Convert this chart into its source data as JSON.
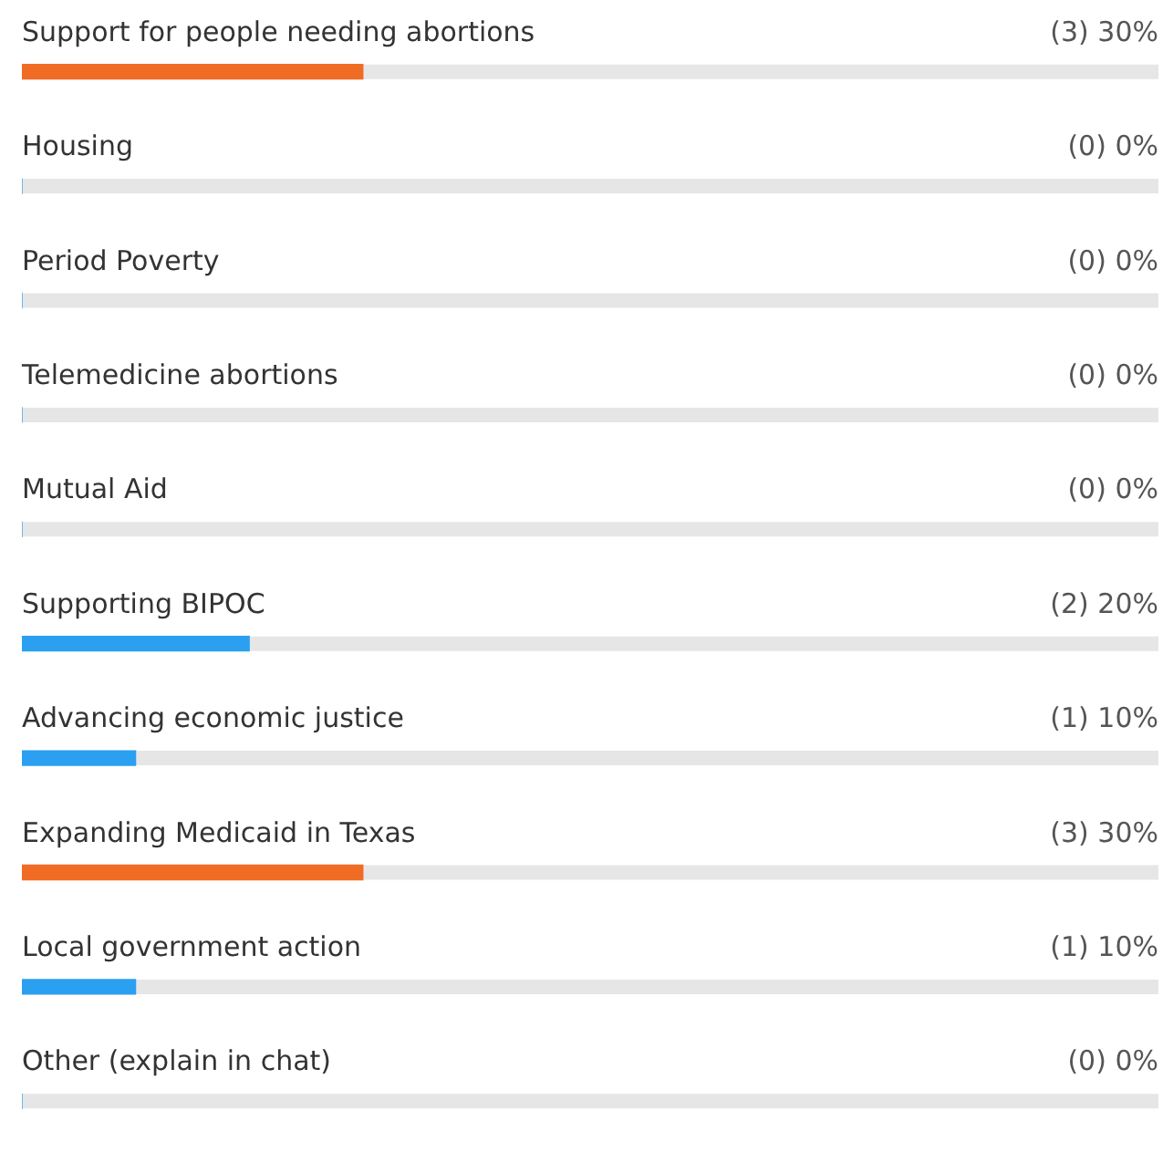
{
  "chart_data": {
    "type": "bar",
    "orientation": "horizontal",
    "categories": [
      "Support for people needing abortions",
      "Housing",
      "Period Poverty",
      "Telemedicine abortions",
      "Mutual Aid",
      "Supporting BIPOC",
      "Advancing economic justice",
      "Expanding Medicaid in Texas",
      "Local government action",
      "Other (explain in chat)"
    ],
    "values": [
      30,
      0,
      0,
      0,
      0,
      20,
      10,
      30,
      10,
      0
    ],
    "colors": [
      "#f06c24",
      "#2b9ff0",
      "#2b9ff0",
      "#2b9ff0",
      "#2b9ff0",
      "#2b9ff0",
      "#2b9ff0",
      "#f06c24",
      "#2b9ff0",
      "#2b9ff0"
    ],
    "value_labels": [
      "(3) 30%",
      "(0) 0%",
      "(0) 0%",
      "(0) 0%",
      "(0) 0%",
      "(2) 20%",
      "(1) 10%",
      "(3) 30%",
      "(1) 10%",
      "(0) 0%"
    ],
    "xlim": [
      0,
      100
    ],
    "tick_labels": false,
    "legend": false
  }
}
